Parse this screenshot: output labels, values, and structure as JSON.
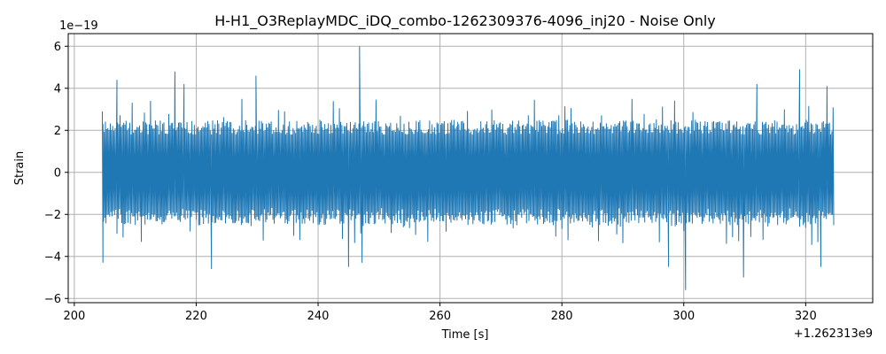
{
  "chart_data": {
    "type": "line",
    "title": "H-H1_O3ReplayMDC_iDQ_combo-1262309376-4096_inj20 - Noise Only",
    "xlabel": "Time [s]",
    "ylabel": "Strain",
    "x_offset_label": "+1.262313e9",
    "y_scale_label": "1e−19",
    "xlim": [
      199,
      331
    ],
    "ylim": [
      -6.2,
      6.6
    ],
    "xticks": [
      200,
      220,
      240,
      260,
      280,
      300,
      320
    ],
    "yticks": [
      -6,
      -4,
      -2,
      0,
      2,
      4,
      6
    ],
    "ytick_labels": [
      "−6",
      "−4",
      "−2",
      "0",
      "2",
      "4",
      "6"
    ],
    "grid": true,
    "series": [
      {
        "color": "#1f77b4",
        "x_range": [
          204.5,
          324.5
        ],
        "sample_count": 600,
        "noise_band": [
          -2.0,
          2.0
        ],
        "peaks": [
          {
            "x": 204.6,
            "y": 2.9
          },
          {
            "x": 204.7,
            "y": -4.3
          },
          {
            "x": 207.0,
            "y": 4.4
          },
          {
            "x": 216.5,
            "y": 4.8
          },
          {
            "x": 218.0,
            "y": 4.2
          },
          {
            "x": 222.5,
            "y": -4.6
          },
          {
            "x": 229.8,
            "y": 4.6
          },
          {
            "x": 245.0,
            "y": -4.5
          },
          {
            "x": 246.8,
            "y": 6.0
          },
          {
            "x": 247.2,
            "y": -4.3
          },
          {
            "x": 297.5,
            "y": -4.5
          },
          {
            "x": 300.3,
            "y": -5.6
          },
          {
            "x": 309.8,
            "y": -5.0
          },
          {
            "x": 312.0,
            "y": 4.2
          },
          {
            "x": 319.0,
            "y": 4.9
          },
          {
            "x": 322.5,
            "y": -4.5
          },
          {
            "x": 323.5,
            "y": 4.1
          }
        ]
      }
    ]
  }
}
